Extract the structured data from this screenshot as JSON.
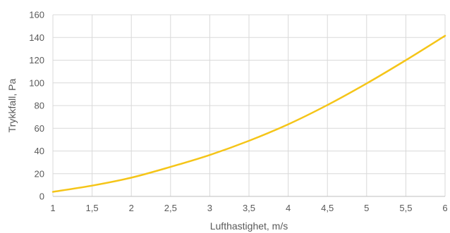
{
  "chart_data": {
    "type": "line",
    "title": "",
    "xlabel": "Lufthastighet, m/s",
    "ylabel": "Trykkfall, Pa",
    "xlim": [
      1,
      6
    ],
    "ylim": [
      0,
      160
    ],
    "x_ticks": [
      "1",
      "1,5",
      "2",
      "2,5",
      "3",
      "3,5",
      "4",
      "4,5",
      "5",
      "5,5",
      "6"
    ],
    "y_ticks": [
      "0",
      "20",
      "40",
      "60",
      "80",
      "100",
      "120",
      "140",
      "160"
    ],
    "grid": "vertical and horizontal",
    "legend": "none",
    "series": [
      {
        "color": "#f5c518",
        "x": [
          1,
          1.5,
          2,
          2.5,
          3,
          3.5,
          4,
          4.5,
          5,
          5.5,
          6
        ],
        "y": [
          4,
          9.5,
          16.5,
          26,
          36.5,
          49,
          63.5,
          80.5,
          99.5,
          120,
          141.5
        ]
      }
    ]
  }
}
